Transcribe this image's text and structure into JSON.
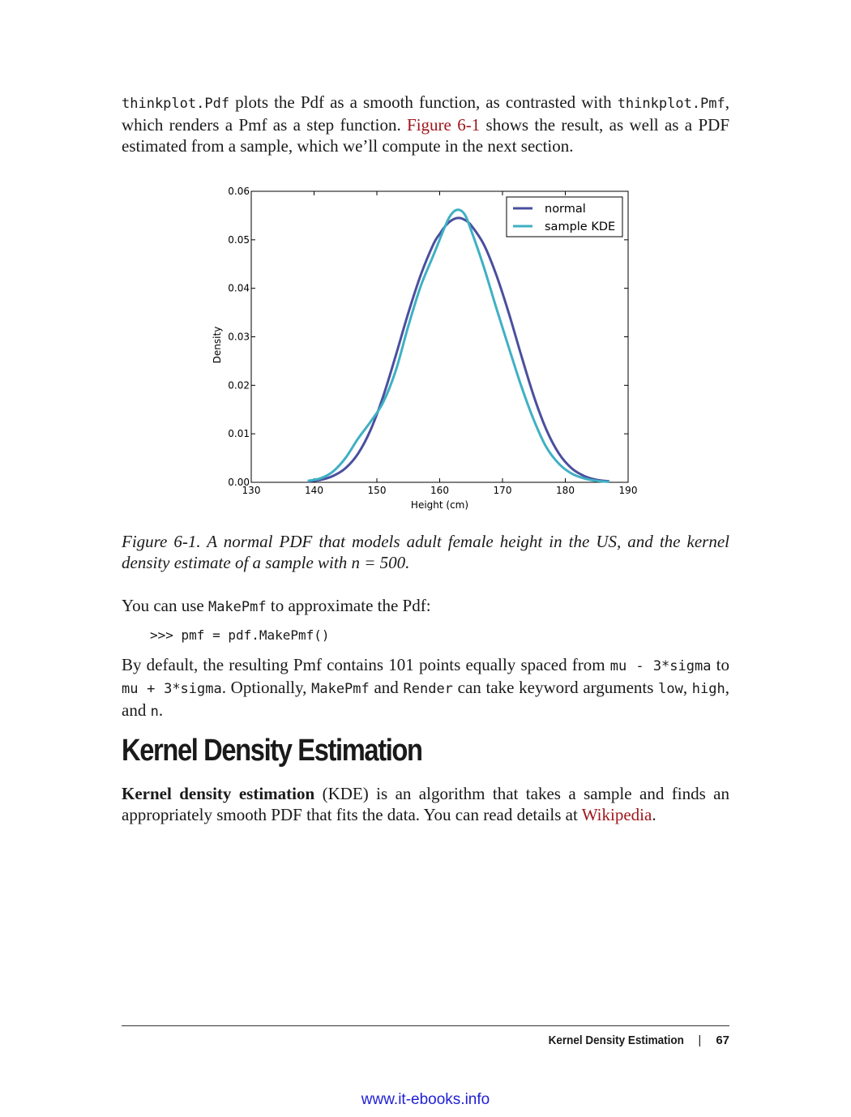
{
  "para1": {
    "code1": "thinkplot.Pdf",
    "t1": " plots the Pdf as a smooth function, as contrasted with ",
    "code2": "thinkplot.Pmf",
    "t2": ", which renders a Pmf as a step function. ",
    "link": "Figure 6-1",
    "t3": " shows the result, as well as a PDF estimated from a sample, which we’ll compute in the next section."
  },
  "caption": "Figure 6-1. A normal PDF that models adult female height in the US, and the kernel density estimate of a sample with n = 500.",
  "para2": {
    "t1": "You can use ",
    "code1": "MakePmf",
    "t2": " to approximate the Pdf:"
  },
  "code_line": ">>> pmf = pdf.MakePmf()",
  "para3": {
    "t1": "By default, the resulting Pmf contains 101 points equally spaced from ",
    "code1": "mu - 3*sigma",
    "t2": " to ",
    "code2": "mu + 3*sigma",
    "t3": ". Optionally, ",
    "code3": "MakePmf",
    "t4": " and ",
    "code4": "Render",
    "t5": " can take keyword arguments ",
    "code5": "low",
    "t6": ", ",
    "code6": "high",
    "t7": ", and ",
    "code7": "n",
    "t8": "."
  },
  "heading": "Kernel Density Estimation",
  "para4": {
    "bold": "Kernel density estimation",
    "t1": " (KDE) is an algorithm that takes a sample and finds an appropriately smooth PDF that fits the data. You can read details at ",
    "link": "Wikipedia",
    "t2": "."
  },
  "footer": {
    "section": "Kernel Density Estimation",
    "separator": "|",
    "page_number": "67"
  },
  "watermark": "www.it-ebooks.info",
  "colors": {
    "link": "#a0151b",
    "normal_series": "#4a4f9e",
    "kde_series": "#3fb0c4",
    "watermark": "#1f1fd6"
  },
  "chart_data": {
    "type": "line",
    "xlabel": "Height (cm)",
    "ylabel": "Density",
    "xlim": [
      130,
      190
    ],
    "ylim": [
      0,
      0.06
    ],
    "xticks": [
      130,
      140,
      150,
      160,
      170,
      180,
      190
    ],
    "yticks": [
      "0.00",
      "0.01",
      "0.02",
      "0.03",
      "0.04",
      "0.05",
      "0.06"
    ],
    "legend_position": "top-right",
    "series": [
      {
        "name": "normal",
        "color": "#4a4f9e",
        "x": [
          139,
          141,
          143,
          145,
          147,
          149,
          151,
          153,
          155,
          157,
          159,
          160,
          161,
          162,
          163,
          164,
          165,
          167,
          169,
          171,
          173,
          175,
          177,
          179,
          181,
          183,
          185,
          187
        ],
        "y": [
          0.0002,
          0.0005,
          0.0013,
          0.0029,
          0.0059,
          0.0108,
          0.0177,
          0.0261,
          0.0349,
          0.0428,
          0.0491,
          0.0512,
          0.053,
          0.0541,
          0.0545,
          0.0541,
          0.053,
          0.0491,
          0.0428,
          0.0349,
          0.0261,
          0.0177,
          0.0108,
          0.0059,
          0.0029,
          0.0013,
          0.0005,
          0.0002
        ]
      },
      {
        "name": "sample KDE",
        "color": "#3fb0c4",
        "x": [
          139,
          141,
          143,
          145,
          147,
          149,
          151,
          153,
          155,
          157,
          159,
          161,
          162,
          163,
          164,
          165,
          167,
          169,
          171,
          173,
          175,
          177,
          179,
          181,
          183,
          185,
          187
        ],
        "y": [
          0.0003,
          0.0008,
          0.0022,
          0.005,
          0.009,
          0.0125,
          0.0165,
          0.023,
          0.0322,
          0.0405,
          0.0468,
          0.0532,
          0.0555,
          0.0562,
          0.0552,
          0.052,
          0.0445,
          0.036,
          0.0278,
          0.0198,
          0.0128,
          0.0072,
          0.0038,
          0.0018,
          0.0008,
          0.0003,
          0.0001
        ]
      }
    ]
  }
}
